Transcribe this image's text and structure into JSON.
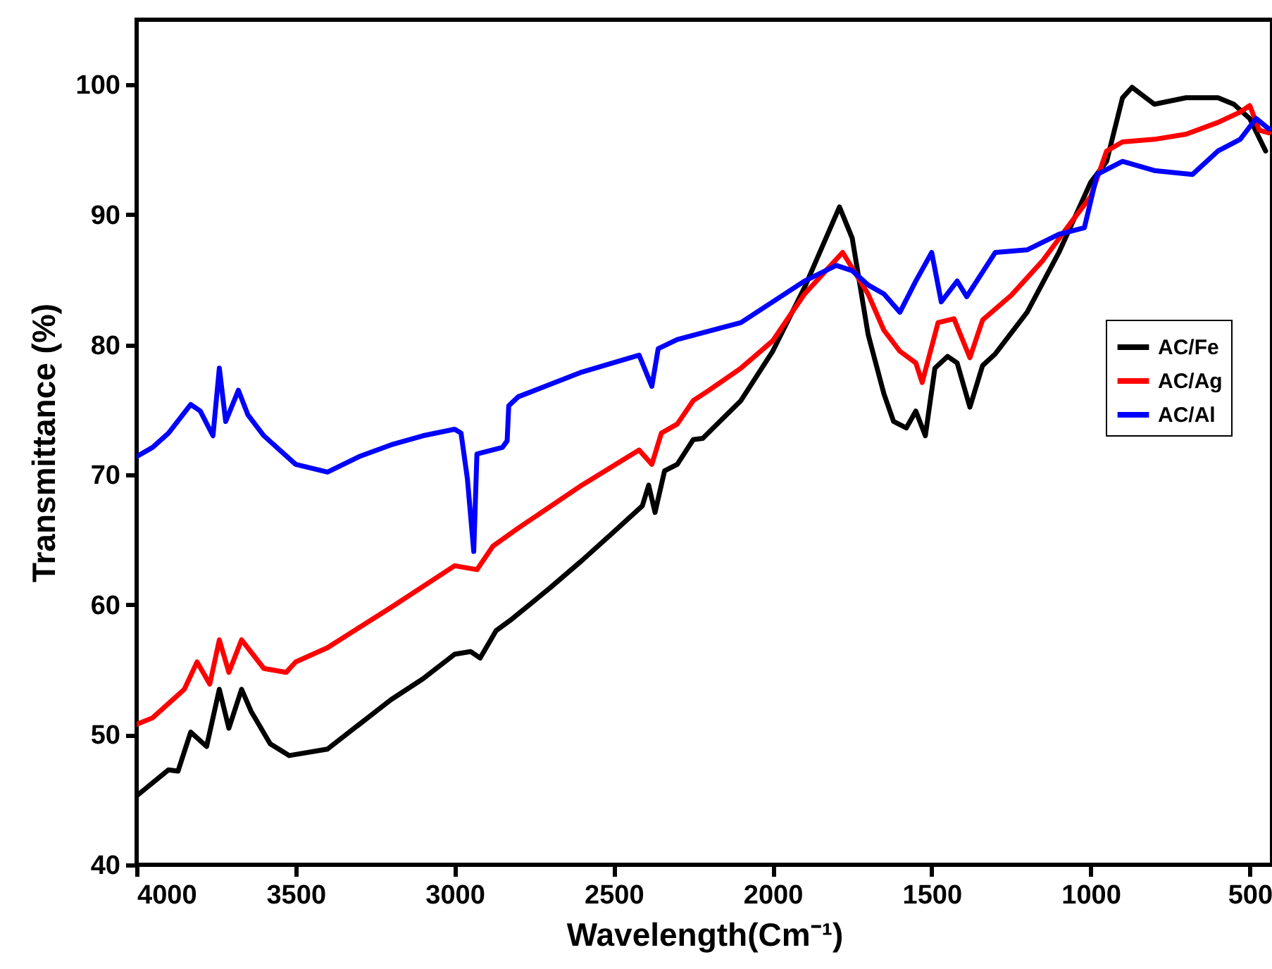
{
  "chart_data": {
    "type": "line",
    "xlabel": "Wavelength(Cm⁻¹)",
    "ylabel": "Transmittance (%)",
    "xlim": [
      4000,
      430
    ],
    "ylim": [
      40,
      105
    ],
    "xticks": [
      4000,
      3500,
      3000,
      2500,
      2000,
      1500,
      1000,
      500
    ],
    "yticks": [
      40,
      50,
      60,
      70,
      80,
      90,
      100
    ],
    "grid": false,
    "legend": "right",
    "line_style": "solid",
    "marker": "none",
    "series": [
      {
        "name": "AC/Fe",
        "color": "#000000",
        "x": [
          4000,
          3900,
          3870,
          3830,
          3780,
          3740,
          3710,
          3670,
          3640,
          3580,
          3520,
          3400,
          3300,
          3200,
          3100,
          3000,
          2950,
          2920,
          2870,
          2820,
          2700,
          2600,
          2500,
          2410,
          2390,
          2370,
          2340,
          2300,
          2250,
          2220,
          2100,
          2000,
          1900,
          1790,
          1750,
          1700,
          1650,
          1620,
          1580,
          1550,
          1520,
          1490,
          1450,
          1420,
          1380,
          1340,
          1300,
          1200,
          1100,
          1000,
          950,
          900,
          870,
          800,
          700,
          600,
          550,
          500,
          450
        ],
        "values": [
          45.3,
          47.3,
          47.2,
          50.2,
          49.1,
          53.5,
          50.5,
          53.5,
          51.8,
          49.3,
          48.4,
          48.9,
          50.8,
          52.7,
          54.3,
          56.2,
          56.4,
          55.9,
          58.0,
          58.9,
          61.3,
          63.4,
          65.6,
          67.6,
          69.2,
          67.1,
          70.3,
          70.8,
          72.7,
          72.8,
          75.7,
          79.5,
          84.4,
          90.6,
          88.2,
          80.8,
          76.2,
          74.1,
          73.6,
          74.9,
          73.0,
          78.2,
          79.1,
          78.6,
          75.2,
          78.4,
          79.3,
          82.5,
          87.1,
          92.5,
          94.1,
          99.0,
          99.8,
          98.5,
          99.0,
          99.0,
          98.5,
          97.4,
          94.9
        ]
      },
      {
        "name": "AC/Ag",
        "color": "#ff0000",
        "x": [
          4000,
          3950,
          3850,
          3810,
          3770,
          3740,
          3710,
          3670,
          3600,
          3530,
          3500,
          3400,
          3200,
          3000,
          2930,
          2880,
          2800,
          2600,
          2420,
          2380,
          2350,
          2300,
          2250,
          2200,
          2100,
          2000,
          1900,
          1780,
          1700,
          1650,
          1600,
          1550,
          1530,
          1480,
          1430,
          1380,
          1340,
          1250,
          1150,
          1050,
          1000,
          950,
          900,
          800,
          700,
          600,
          530,
          500,
          470,
          440
        ],
        "values": [
          50.8,
          51.3,
          53.5,
          55.6,
          53.9,
          57.3,
          54.8,
          57.3,
          55.1,
          54.8,
          55.6,
          56.7,
          59.8,
          63.0,
          62.7,
          64.5,
          65.9,
          69.2,
          71.9,
          70.8,
          73.2,
          73.9,
          75.7,
          76.5,
          78.2,
          80.3,
          83.9,
          87.1,
          83.9,
          81.1,
          79.5,
          78.6,
          77.1,
          81.7,
          82.0,
          79.0,
          81.9,
          83.8,
          86.5,
          89.8,
          91.4,
          94.9,
          95.6,
          95.8,
          96.2,
          97.1,
          97.9,
          98.4,
          96.5,
          96.3
        ]
      },
      {
        "name": "AC/Al",
        "color": "#0000ff",
        "x": [
          4000,
          3950,
          3900,
          3830,
          3800,
          3760,
          3740,
          3720,
          3680,
          3650,
          3600,
          3550,
          3500,
          3400,
          3300,
          3200,
          3100,
          3000,
          2980,
          2960,
          2940,
          2930,
          2850,
          2835,
          2830,
          2800,
          2600,
          2420,
          2380,
          2360,
          2300,
          2100,
          2000,
          1900,
          1800,
          1750,
          1700,
          1650,
          1600,
          1550,
          1500,
          1470,
          1420,
          1390,
          1300,
          1200,
          1100,
          1020,
          980,
          900,
          800,
          680,
          600,
          530,
          480,
          440
        ],
        "values": [
          71.4,
          72.1,
          73.2,
          75.4,
          74.9,
          73.0,
          78.2,
          74.1,
          76.5,
          74.6,
          73.0,
          71.9,
          70.8,
          70.2,
          71.4,
          72.3,
          73.0,
          73.5,
          73.2,
          69.7,
          64.1,
          71.6,
          72.1,
          72.6,
          75.3,
          76.0,
          77.9,
          79.2,
          76.8,
          79.7,
          80.4,
          81.7,
          83.3,
          84.9,
          86.1,
          85.7,
          84.6,
          83.9,
          82.5,
          84.9,
          87.1,
          83.3,
          84.9,
          83.7,
          87.1,
          87.3,
          88.5,
          89.0,
          93.1,
          94.1,
          93.4,
          93.1,
          94.9,
          95.8,
          97.4,
          96.6
        ]
      }
    ]
  }
}
